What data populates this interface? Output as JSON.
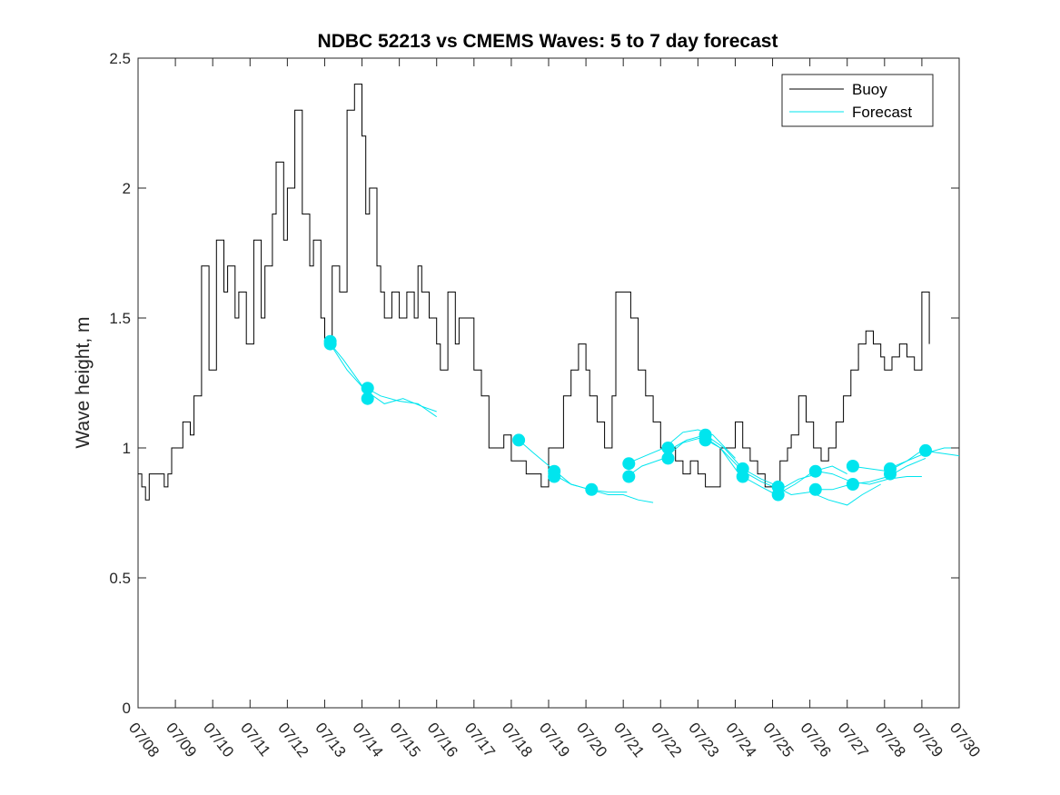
{
  "colors": {
    "buoy": "#000000",
    "forecast": "#00e5ee",
    "axis": "#262626"
  },
  "chart_data": {
    "type": "line",
    "title": "NDBC 52213 vs CMEMS Waves: 5 to 7 day forecast",
    "xlabel": "",
    "ylabel": "Wave height, m",
    "xlim_day": [
      8,
      30
    ],
    "ylim": [
      0,
      2.5
    ],
    "grid": false,
    "legend_position": "top-right",
    "x_tick_labels": [
      "07/08",
      "07/09",
      "07/10",
      "07/11",
      "07/12",
      "07/13",
      "07/14",
      "07/15",
      "07/16",
      "07/17",
      "07/18",
      "07/19",
      "07/20",
      "07/21",
      "07/22",
      "07/23",
      "07/24",
      "07/25",
      "07/26",
      "07/27",
      "07/28",
      "07/29",
      "07/30"
    ],
    "y_ticks": [
      0,
      0.5,
      1,
      1.5,
      2,
      2.5
    ],
    "y_tick_labels": [
      "0",
      "0.5",
      "1",
      "1.5",
      "2",
      "2.5"
    ],
    "legend": [
      "Buoy",
      "Forecast"
    ],
    "buoy": {
      "name": "Buoy",
      "day": [
        8.0,
        8.1,
        8.2,
        8.3,
        8.5,
        8.7,
        8.8,
        8.9,
        9.0,
        9.2,
        9.4,
        9.5,
        9.7,
        9.9,
        10.1,
        10.3,
        10.4,
        10.6,
        10.7,
        10.9,
        11.1,
        11.3,
        11.4,
        11.6,
        11.7,
        11.9,
        12.0,
        12.2,
        12.4,
        12.6,
        12.7,
        12.9,
        13.0,
        13.2,
        13.4,
        13.6,
        13.8,
        14.0,
        14.1,
        14.2,
        14.4,
        14.5,
        14.6,
        14.8,
        15.0,
        15.2,
        15.4,
        15.5,
        15.6,
        15.8,
        16.0,
        16.1,
        16.3,
        16.5,
        16.6,
        16.8,
        17.0,
        17.2,
        17.4,
        17.6,
        17.8,
        18.0,
        18.2,
        18.4,
        18.6,
        18.8,
        19.0,
        19.2,
        19.4,
        19.6,
        19.8,
        20.0,
        20.1,
        20.3,
        20.5,
        20.7,
        20.8,
        21.0,
        21.2,
        21.4,
        21.6,
        21.8,
        22.0,
        22.2,
        22.4,
        22.6,
        22.8,
        23.0,
        23.2,
        23.4,
        23.6,
        23.8,
        24.0,
        24.2,
        24.4,
        24.6,
        24.8,
        25.0,
        25.2,
        25.4,
        25.5,
        25.7,
        25.9,
        26.1,
        26.3,
        26.5,
        26.7,
        26.9,
        27.1,
        27.3,
        27.5,
        27.7,
        27.9,
        28.0,
        28.2,
        28.4,
        28.6,
        28.8,
        29.0,
        29.2
      ],
      "height": [
        0.9,
        0.85,
        0.8,
        0.9,
        0.9,
        0.85,
        0.9,
        1.0,
        1.0,
        1.1,
        1.05,
        1.2,
        1.7,
        1.3,
        1.8,
        1.6,
        1.7,
        1.5,
        1.6,
        1.4,
        1.8,
        1.5,
        1.7,
        1.9,
        2.1,
        1.8,
        2.0,
        2.3,
        1.9,
        1.7,
        1.8,
        1.5,
        1.4,
        1.7,
        1.6,
        2.3,
        2.4,
        2.2,
        1.9,
        2.0,
        1.7,
        1.6,
        1.5,
        1.6,
        1.5,
        1.6,
        1.5,
        1.7,
        1.6,
        1.5,
        1.4,
        1.3,
        1.6,
        1.4,
        1.5,
        1.5,
        1.3,
        1.2,
        1.0,
        1.0,
        1.05,
        0.95,
        0.95,
        0.9,
        0.9,
        0.85,
        1.0,
        1.0,
        1.2,
        1.3,
        1.4,
        1.3,
        1.2,
        1.1,
        1.0,
        1.2,
        1.6,
        1.6,
        1.5,
        1.3,
        1.2,
        1.1,
        1.0,
        1.0,
        0.95,
        0.9,
        0.95,
        0.9,
        0.85,
        0.85,
        1.0,
        1.0,
        1.1,
        1.0,
        0.95,
        0.9,
        0.85,
        0.85,
        0.95,
        1.0,
        1.05,
        1.2,
        1.1,
        1.0,
        0.95,
        1.0,
        1.1,
        1.2,
        1.3,
        1.4,
        1.45,
        1.4,
        1.35,
        1.3,
        1.35,
        1.4,
        1.35,
        1.3,
        1.6,
        1.4
      ]
    },
    "forecast": {
      "name": "Forecast",
      "runs": [
        {
          "day": [
            13.1,
            13.5,
            14.0,
            14.5,
            15.0,
            15.5,
            16.0
          ],
          "height": [
            1.41,
            1.34,
            1.24,
            1.2,
            1.18,
            1.17,
            1.12
          ]
        },
        {
          "day": [
            13.15,
            13.6,
            14.1,
            14.6,
            15.1,
            15.6,
            16.0
          ],
          "height": [
            1.4,
            1.3,
            1.22,
            1.17,
            1.19,
            1.16,
            1.14
          ]
        },
        {
          "day": [
            18.2,
            18.6,
            19.1,
            19.6,
            20.1,
            20.6,
            21.1
          ],
          "height": [
            1.03,
            0.98,
            0.92,
            0.86,
            0.84,
            0.83,
            0.83
          ]
        },
        {
          "day": [
            19.1,
            19.6,
            20.1,
            20.6,
            21.0,
            21.4,
            21.8
          ],
          "height": [
            0.9,
            0.86,
            0.84,
            0.82,
            0.82,
            0.8,
            0.79
          ]
        },
        {
          "day": [
            21.1,
            21.6,
            22.1,
            22.6,
            23.0,
            23.4,
            24.0
          ],
          "height": [
            0.94,
            0.97,
            1.0,
            1.06,
            1.07,
            1.05,
            0.96
          ]
        },
        {
          "day": [
            21.1,
            21.5,
            22.1,
            22.6,
            23.1,
            23.6,
            24.1
          ],
          "height": [
            0.89,
            0.93,
            0.96,
            1.02,
            1.04,
            1.0,
            0.9
          ]
        },
        {
          "day": [
            22.2,
            22.7,
            23.2,
            23.7,
            24.2,
            24.7,
            25.2
          ],
          "height": [
            0.99,
            1.03,
            1.05,
            1.0,
            0.92,
            0.88,
            0.85
          ]
        },
        {
          "day": [
            23.2,
            23.6,
            24.2,
            24.7,
            25.2,
            25.7,
            26.2
          ],
          "height": [
            1.04,
            1.0,
            0.91,
            0.87,
            0.84,
            0.88,
            0.9
          ]
        },
        {
          "day": [
            24.2,
            24.7,
            25.1,
            25.6,
            26.1,
            26.6,
            27.0
          ],
          "height": [
            0.89,
            0.85,
            0.82,
            0.86,
            0.91,
            0.93,
            0.9
          ]
        },
        {
          "day": [
            25.1,
            25.5,
            26.0,
            26.5,
            27.0,
            27.4,
            27.9
          ],
          "height": [
            0.85,
            0.82,
            0.83,
            0.8,
            0.78,
            0.82,
            0.86
          ]
        },
        {
          "day": [
            26.2,
            26.6,
            27.1,
            27.6,
            28.1,
            28.6,
            29.0
          ],
          "height": [
            0.91,
            0.9,
            0.87,
            0.86,
            0.88,
            0.89,
            0.89
          ]
        },
        {
          "day": [
            26.1,
            26.6,
            27.1,
            27.6,
            28.1,
            28.6,
            29.1
          ],
          "height": [
            0.84,
            0.84,
            0.86,
            0.87,
            0.89,
            0.93,
            0.96
          ]
        },
        {
          "day": [
            27.1,
            27.6,
            28.1,
            28.6,
            29.1,
            29.6,
            30.0
          ],
          "height": [
            0.93,
            0.92,
            0.91,
            0.95,
            0.98,
            1.0,
            1.0
          ]
        },
        {
          "day": [
            28.1,
            28.6,
            29.0,
            29.5,
            30.0
          ],
          "height": [
            0.92,
            0.95,
            0.99,
            0.98,
            0.97
          ]
        }
      ],
      "markers": [
        {
          "day": 13.15,
          "height": 1.41
        },
        {
          "day": 13.15,
          "height": 1.4
        },
        {
          "day": 14.15,
          "height": 1.23
        },
        {
          "day": 14.15,
          "height": 1.19
        },
        {
          "day": 18.2,
          "height": 1.03
        },
        {
          "day": 19.15,
          "height": 0.91
        },
        {
          "day": 19.15,
          "height": 0.89
        },
        {
          "day": 20.15,
          "height": 0.84
        },
        {
          "day": 21.15,
          "height": 0.94
        },
        {
          "day": 21.15,
          "height": 0.89
        },
        {
          "day": 22.2,
          "height": 1.0
        },
        {
          "day": 22.2,
          "height": 0.96
        },
        {
          "day": 23.2,
          "height": 1.05
        },
        {
          "day": 23.2,
          "height": 1.03
        },
        {
          "day": 24.2,
          "height": 0.92
        },
        {
          "day": 24.2,
          "height": 0.89
        },
        {
          "day": 25.15,
          "height": 0.85
        },
        {
          "day": 25.15,
          "height": 0.82
        },
        {
          "day": 26.15,
          "height": 0.91
        },
        {
          "day": 26.15,
          "height": 0.84
        },
        {
          "day": 27.15,
          "height": 0.93
        },
        {
          "day": 27.15,
          "height": 0.86
        },
        {
          "day": 28.15,
          "height": 0.92
        },
        {
          "day": 28.15,
          "height": 0.9
        },
        {
          "day": 29.1,
          "height": 0.99
        }
      ]
    }
  }
}
